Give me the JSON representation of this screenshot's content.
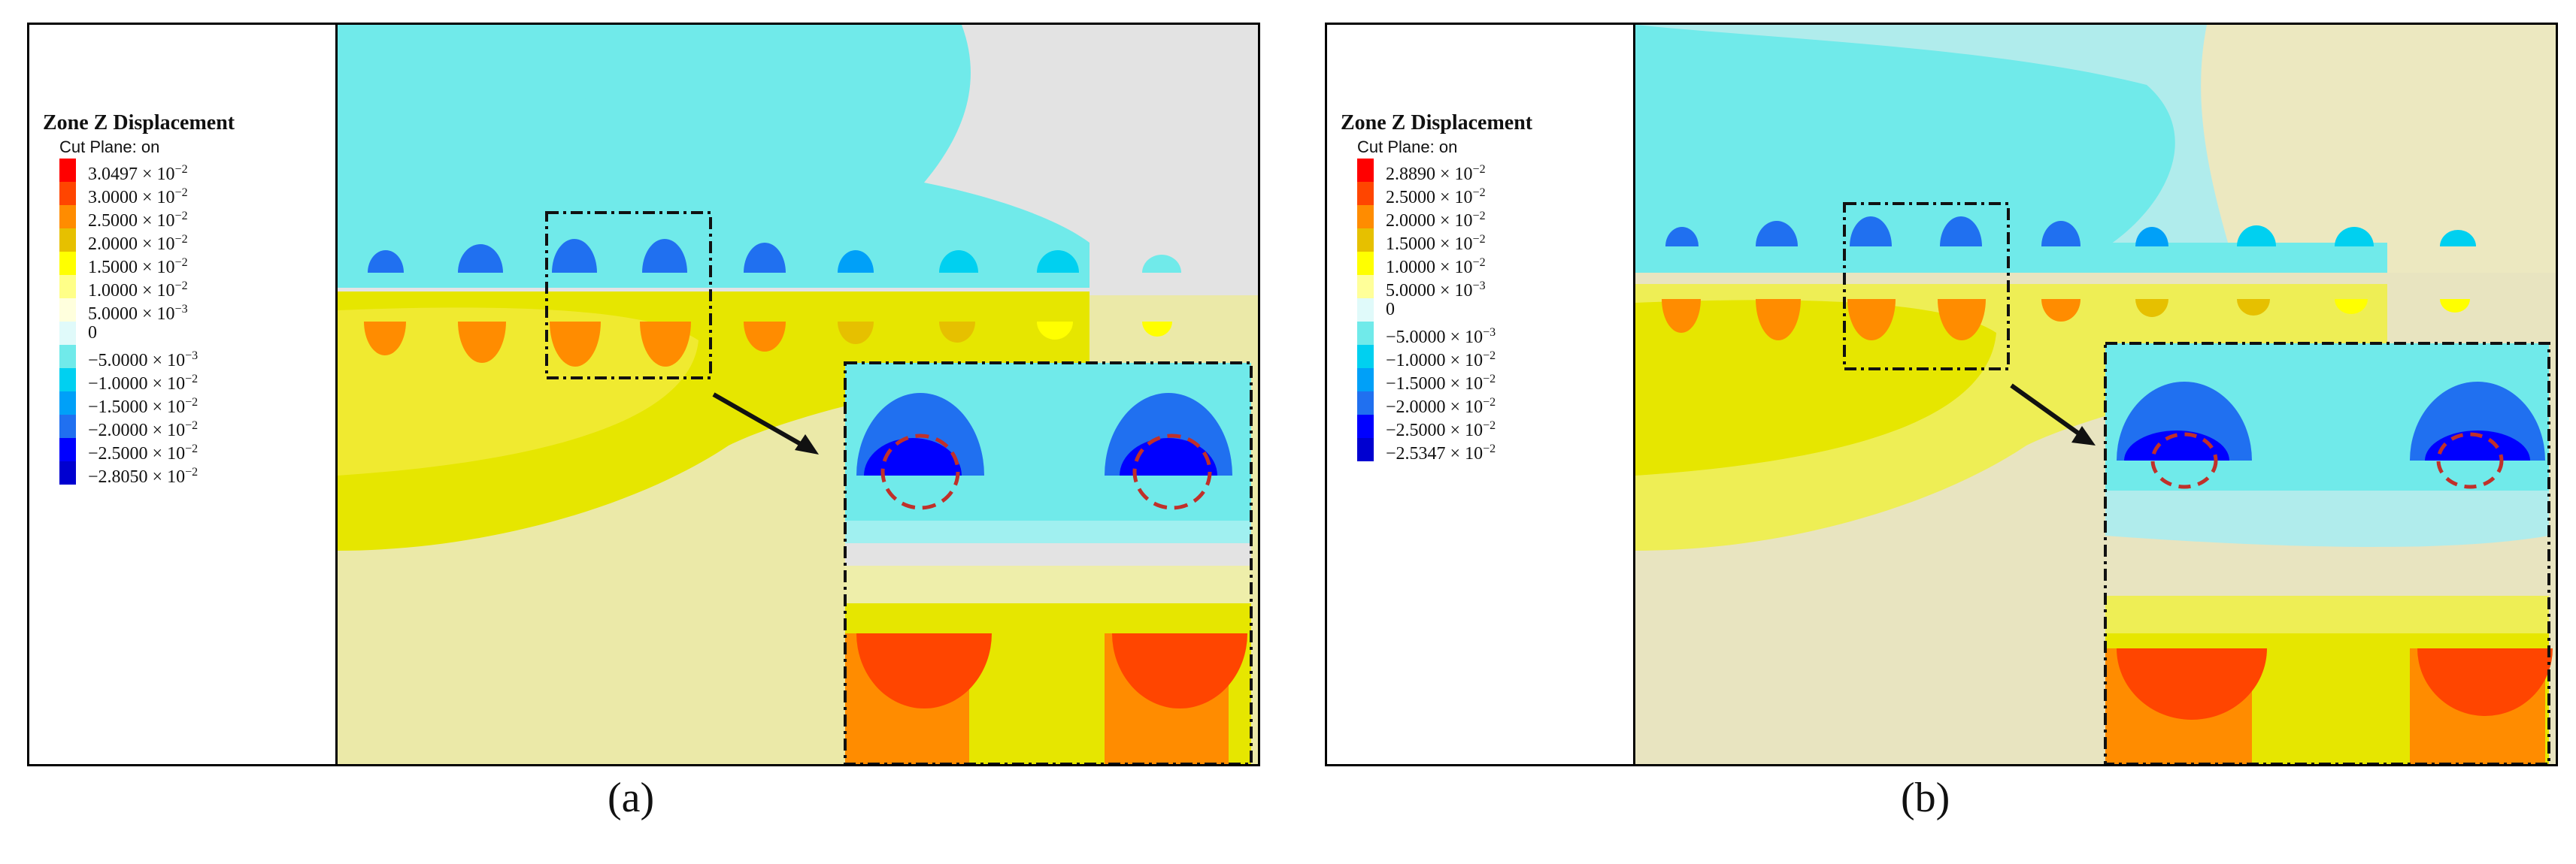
{
  "panels": [
    {
      "id": "a",
      "caption": "(a)",
      "legend": {
        "title": "Zone Z Displacement",
        "subtitle": "Cut Plane: on",
        "entries": [
          {
            "mant": "3.0497 × 10",
            "exp": "−2",
            "color": "#ff0000"
          },
          {
            "mant": "3.0000 × 10",
            "exp": "−2",
            "color": "#ff4500"
          },
          {
            "mant": "2.5000 × 10",
            "exp": "−2",
            "color": "#ff8c00"
          },
          {
            "mant": "2.0000 × 10",
            "exp": "−2",
            "color": "#e6c000"
          },
          {
            "mant": "1.5000 × 10",
            "exp": "−2",
            "color": "#ffff00"
          },
          {
            "mant": "1.0000 × 10",
            "exp": "−2",
            "color": "#ffff88"
          },
          {
            "mant": "5.0000 × 10",
            "exp": "−3",
            "color": "#ffffdd"
          },
          {
            "mant": "0",
            "exp": "",
            "color": "#e0fafa"
          },
          {
            "mant": "−5.0000 × 10",
            "exp": "−3",
            "color": "#70eaea"
          },
          {
            "mant": "−1.0000 × 10",
            "exp": "−2",
            "color": "#00d0f0"
          },
          {
            "mant": "−1.5000 × 10",
            "exp": "−2",
            "color": "#00a0f8"
          },
          {
            "mant": "−2.0000 × 10",
            "exp": "−2",
            "color": "#2070f0"
          },
          {
            "mant": "−2.5000 × 10",
            "exp": "−2",
            "color": "#0000ff"
          },
          {
            "mant": "−2.8050 × 10",
            "exp": "−2",
            "color": "#0000d0"
          }
        ]
      }
    },
    {
      "id": "b",
      "caption": "(b)",
      "legend": {
        "title": "Zone Z Displacement",
        "subtitle": "Cut Plane: on",
        "entries": [
          {
            "mant": "2.8890 × 10",
            "exp": "−2",
            "color": "#ff0000"
          },
          {
            "mant": "2.5000 × 10",
            "exp": "−2",
            "color": "#ff4500"
          },
          {
            "mant": "2.0000 × 10",
            "exp": "−2",
            "color": "#ff8c00"
          },
          {
            "mant": "1.5000 × 10",
            "exp": "−2",
            "color": "#e6c000"
          },
          {
            "mant": "1.0000 × 10",
            "exp": "−2",
            "color": "#ffff00"
          },
          {
            "mant": "5.0000 × 10",
            "exp": "−3",
            "color": "#ffff99"
          },
          {
            "mant": "0",
            "exp": "",
            "color": "#e0fafa"
          },
          {
            "mant": "−5.0000 × 10",
            "exp": "−3",
            "color": "#70eaea"
          },
          {
            "mant": "−1.0000 × 10",
            "exp": "−2",
            "color": "#00d0f0"
          },
          {
            "mant": "−1.5000 × 10",
            "exp": "−2",
            "color": "#00a0f8"
          },
          {
            "mant": "−2.0000 × 10",
            "exp": "−2",
            "color": "#2070f0"
          },
          {
            "mant": "−2.5000 × 10",
            "exp": "−2",
            "color": "#0000ff"
          },
          {
            "mant": "−2.5347 × 10",
            "exp": "−2",
            "color": "#0000d0"
          }
        ]
      }
    }
  ]
}
